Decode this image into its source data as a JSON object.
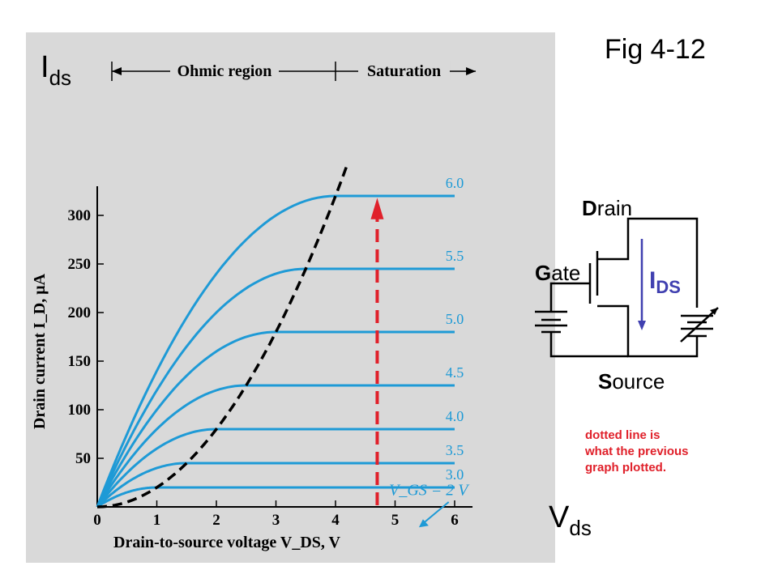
{
  "figure": {
    "title": "Fig 4-12",
    "ids_label": {
      "main": "I",
      "sub": "ds"
    },
    "vds_label": {
      "main": "V",
      "sub": "ds"
    },
    "note": [
      "dotted line is",
      "what the previous",
      "graph plotted."
    ]
  },
  "circuit": {
    "drain": {
      "initial": "D",
      "rest": "rain"
    },
    "gate": {
      "initial": "G",
      "rest": "ate"
    },
    "source": {
      "initial": "S",
      "rest": "ource"
    },
    "current": {
      "main": "I",
      "sub": "DS"
    },
    "colors": {
      "wire": "#000000",
      "arrow": "#4040b0"
    }
  },
  "chart_data": {
    "type": "line",
    "title": "",
    "xlabel": "Drain-to-source voltage V_DS, V",
    "ylabel": "Drain current I_D, μA",
    "xlim": [
      0,
      6.3
    ],
    "ylim": [
      0,
      330
    ],
    "x_ticks": [
      0,
      1,
      2,
      3,
      4,
      5,
      6
    ],
    "y_ticks": [
      50,
      100,
      150,
      200,
      250,
      300
    ],
    "regions": [
      {
        "label": "Ohmic region",
        "x_range": [
          0,
          4
        ]
      },
      {
        "label": "Saturation",
        "x_range": [
          4,
          6.3
        ]
      }
    ],
    "series": [
      {
        "name": "3.0",
        "saturation_vds": 1.0,
        "saturation_id": 20
      },
      {
        "name": "3.5",
        "saturation_vds": 1.5,
        "saturation_id": 45
      },
      {
        "name": "4.0",
        "saturation_vds": 2.0,
        "saturation_id": 80
      },
      {
        "name": "4.5",
        "saturation_vds": 2.5,
        "saturation_id": 125
      },
      {
        "name": "5.0",
        "saturation_vds": 3.0,
        "saturation_id": 180
      },
      {
        "name": "5.5",
        "saturation_vds": 3.5,
        "saturation_id": 245
      },
      {
        "name": "6.0",
        "saturation_vds": 4.0,
        "saturation_id": 320
      }
    ],
    "boundary_curve": {
      "style": "dashed",
      "color": "#000000",
      "formula": "I_D = 20 · V_DS^2"
    },
    "vertical_marker": {
      "x": 4.7,
      "style": "dashed",
      "color": "#e0202a"
    },
    "annotation": "V_GS = 2 V",
    "colors": {
      "curves": "#1e9ad6",
      "panel": "#d9d9d9"
    }
  }
}
